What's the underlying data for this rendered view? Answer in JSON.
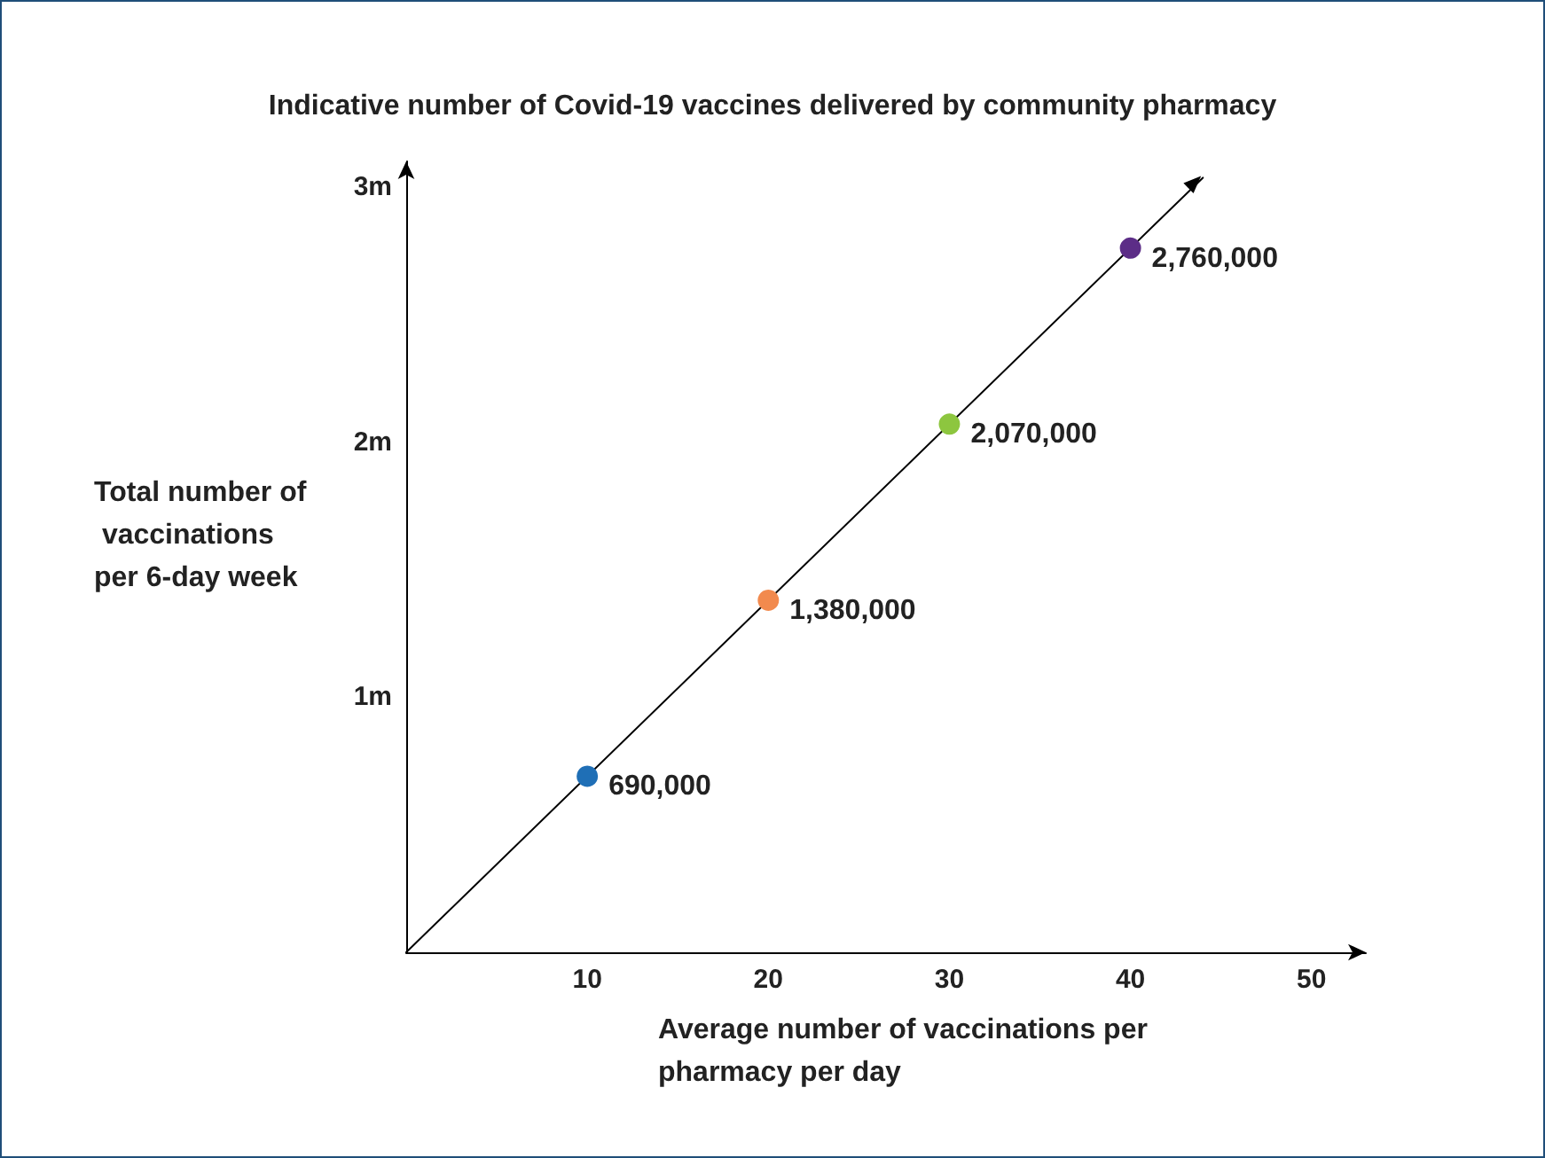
{
  "chart_data": {
    "type": "scatter",
    "title": "Indicative number of Covid-19 vaccines delivered by community pharmacy",
    "xlabel": "Average number of vaccinations per pharmacy per day",
    "ylabel": "Total number of vaccinations per 6-day week",
    "x": [
      10,
      20,
      30,
      40
    ],
    "series": [
      {
        "type": "line",
        "color": "#000000",
        "x": [
          0,
          44
        ],
        "values": [
          0,
          3036000
        ],
        "marker": "none"
      },
      {
        "colors": [
          "#1f6fb6",
          "#f28a4e",
          "#8dc63f",
          "#5c2d87"
        ],
        "values": [
          690000,
          1380000,
          2070000,
          2760000
        ],
        "value_labels": [
          "690,000",
          "1,380,000",
          "2,070,000",
          "2,760,000"
        ],
        "marker": "circle"
      }
    ],
    "xlim": [
      0,
      53
    ],
    "xticks": [
      10,
      20,
      30,
      40,
      50
    ],
    "ylim": [
      0,
      3100000
    ],
    "yticks": [
      {
        "value": 1000000,
        "label": "1m"
      },
      {
        "value": 2000000,
        "label": "2m"
      },
      {
        "value": 3000000,
        "label": "3m"
      }
    ],
    "grid": false
  }
}
